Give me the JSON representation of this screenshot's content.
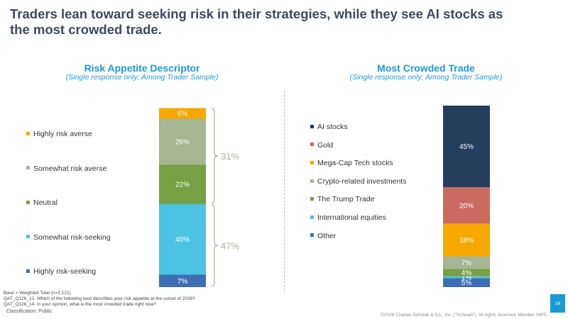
{
  "headline": "Traders lean toward seeking risk in their strategies, while they see AI stocks as the most crowded trade.",
  "footnotes": {
    "base": "Base = Weighted Total (n=2,121)",
    "q1": "QAT_Q126_12. Which of the following best describes your risk appetite at the outset of 2026?",
    "q2": "QAT_Q126_14. In your opinion, what is the most crowded trade right now?",
    "classification": "Classification: Public"
  },
  "copyright": "©2026 Charles Schwab & Co., Inc. (\"Schwab\"). All rights reserved. Member SIPC.",
  "page_number": "16",
  "chart_data": [
    {
      "type": "bar",
      "stacked": true,
      "title": "Risk Appetite Descriptor",
      "subtitle": "(Single response only; Among Trader Sample)",
      "ylim": [
        0,
        100
      ],
      "legend_position": "left",
      "series": [
        {
          "name": "Highly risk-seeking",
          "value": 7,
          "label": "7%",
          "color": "#3f6db3"
        },
        {
          "name": "Somewhat risk-seeking",
          "value": 40,
          "label": "40%",
          "color": "#4cc3e3"
        },
        {
          "name": "Neutral",
          "value": 22,
          "label": "22%",
          "color": "#76a043"
        },
        {
          "name": "Somewhat risk averse",
          "value": 26,
          "label": "26%",
          "color": "#a6b592"
        },
        {
          "name": "Highly risk averse",
          "value": 6,
          "label": "6%",
          "color": "#f5a800"
        }
      ],
      "legend_order": [
        "Highly risk averse",
        "Somewhat risk averse",
        "Neutral",
        "Somewhat risk-seeking",
        "Highly risk-seeking"
      ],
      "annotations": [
        {
          "label": "31%",
          "from": 2,
          "to": 4,
          "color": "#a6b592"
        },
        {
          "label": "47%",
          "from": 0,
          "to": 1,
          "color": "#a6b592"
        }
      ]
    },
    {
      "type": "bar",
      "stacked": true,
      "title": "Most Crowded Trade",
      "subtitle": "(Single response only; Among Trader Sample)",
      "ylim": [
        0,
        100
      ],
      "legend_position": "left",
      "series": [
        {
          "name": "Other",
          "value": 5,
          "label": "5%",
          "color": "#3f6db3"
        },
        {
          "name": "International equities",
          "value": 1,
          "label": "1%",
          "color": "#4cc3e3"
        },
        {
          "name": "The Trump Trade",
          "value": 4,
          "label": "4%",
          "color": "#76a043"
        },
        {
          "name": "Crypto-related investments",
          "value": 7,
          "label": "7%",
          "color": "#a6b592"
        },
        {
          "name": "Mega-Cap Tech stocks",
          "value": 18,
          "label": "18%",
          "color": "#f5a800"
        },
        {
          "name": "Gold",
          "value": 20,
          "label": "20%",
          "color": "#c96b5e"
        },
        {
          "name": "AI stocks",
          "value": 45,
          "label": "45%",
          "color": "#263d5e"
        }
      ],
      "legend_order": [
        "AI stocks",
        "Gold",
        "Mega-Cap Tech stocks",
        "Crypto-related investments",
        "The Trump Trade",
        "International equities",
        "Other"
      ]
    }
  ]
}
